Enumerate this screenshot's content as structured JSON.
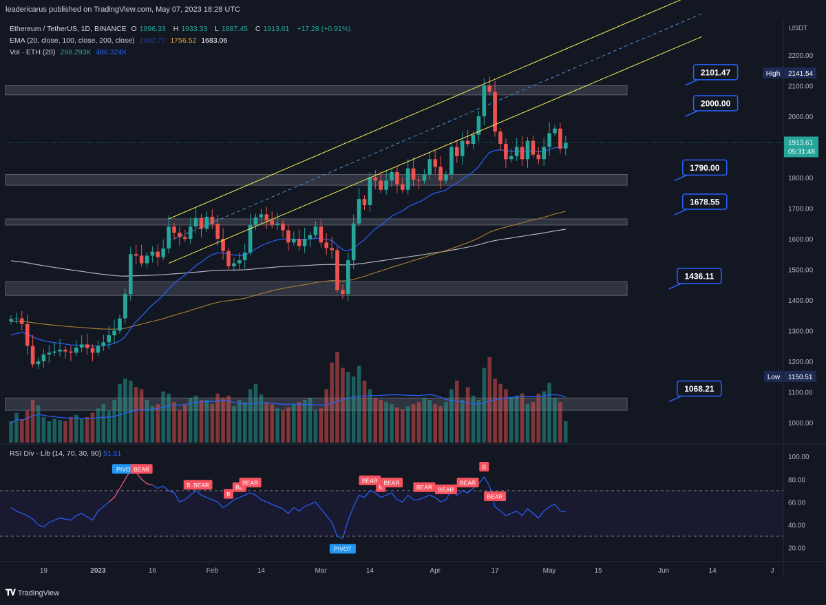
{
  "publisher_line": "leadericarus published on TradingView.com, May 07, 2023 18:28 UTC",
  "legend": {
    "symbol": "Ethereum / TetherUS, 1D, BINANCE",
    "o_label": "O",
    "o_value": "1896.33",
    "h_label": "H",
    "h_value": "1933.33",
    "l_label": "L",
    "l_value": "1887.45",
    "c_label": "C",
    "c_value": "1913.61",
    "change": "+17.28 (+0.91%)",
    "ema_label": "EMA (20, close, 100, close, 200, close)",
    "ema_values": [
      "1902.77",
      "1756.52",
      "1683.06"
    ],
    "vol_label": "Vol · ETH (20)",
    "vol_values": [
      "298.293K",
      "486.324K"
    ],
    "rsi_label": "RSI Div - Lib (14, 70, 30, 90)",
    "rsi_value": "51.51"
  },
  "footer": {
    "brand": "TradingView"
  },
  "colors": {
    "bg": "#131722",
    "up": "#26a69a",
    "down": "#ef5350",
    "zone": "#363a45",
    "channel": "#f4ed57",
    "label_border": "#2962ff",
    "ema20": "#2962ff",
    "ema100": "#a07a32",
    "ema200": "#b2b5be",
    "rsi_line": "#2962ff",
    "bear": "#f7525f",
    "pivot": "#2196f3"
  },
  "chart_data": [
    {
      "type": "candlestick",
      "title": "Ethereum / TetherUS, 1D, BINANCE",
      "currency": "USDT",
      "ylim": [
        930,
        2290
      ],
      "y_ticks": [
        1000,
        1100,
        1200,
        1300,
        1400,
        1500,
        1600,
        1700,
        1800,
        1900,
        2000,
        2100,
        2200
      ],
      "x_ticks": [
        "19",
        "2023",
        "16",
        "Feb",
        "14",
        "Mar",
        "14",
        "Apr",
        "17",
        "May",
        "15",
        "Jun",
        "14",
        "J"
      ],
      "price_labels": [
        {
          "label": "High",
          "value": "2141.54"
        },
        {
          "label": "",
          "value": "1913.61",
          "sub": "05:31:48"
        },
        {
          "label": "Low",
          "value": "1150.51"
        }
      ],
      "level_labels": [
        "2101.47",
        "2000.00",
        "1790.00",
        "1678.55",
        "1436.11",
        "1068.21"
      ],
      "zones": [
        [
          2070,
          2100
        ],
        [
          1775,
          1810
        ],
        [
          1645,
          1665
        ],
        [
          1415,
          1460
        ],
        [
          1040,
          1080
        ]
      ],
      "closes": [
        1338,
        1340,
        1322,
        1250,
        1190,
        1200,
        1222,
        1228,
        1232,
        1238,
        1232,
        1228,
        1245,
        1255,
        1243,
        1228,
        1250,
        1262,
        1285,
        1300,
        1340,
        1420,
        1550,
        1545,
        1520,
        1545,
        1558,
        1540,
        1568,
        1640,
        1620,
        1606,
        1600,
        1640,
        1668,
        1633,
        1672,
        1649,
        1600,
        1560,
        1510,
        1520,
        1530,
        1555,
        1645,
        1670,
        1680,
        1660,
        1645,
        1650,
        1628,
        1588,
        1600,
        1576,
        1600,
        1612,
        1640,
        1588,
        1570,
        1563,
        1433,
        1420,
        1530,
        1650,
        1730,
        1710,
        1800,
        1790,
        1760,
        1790,
        1818,
        1778,
        1760,
        1830,
        1793,
        1790,
        1810,
        1860,
        1835,
        1790,
        1810,
        1900,
        1870,
        1920,
        1910,
        1940,
        2000,
        2100,
        2080,
        1950,
        1910,
        1860,
        1870,
        1900,
        1860,
        1920,
        1875,
        1860,
        1900,
        1945,
        1960,
        1895,
        1913
      ],
      "volume_scale": "relative",
      "volumes": [
        20,
        28,
        22,
        30,
        40,
        35,
        24,
        20,
        22,
        21,
        20,
        24,
        26,
        22,
        24,
        28,
        32,
        36,
        30,
        40,
        55,
        60,
        58,
        52,
        50,
        40,
        34,
        36,
        48,
        46,
        38,
        30,
        36,
        42,
        44,
        40,
        40,
        36,
        46,
        42,
        44,
        34,
        40,
        38,
        50,
        55,
        45,
        38,
        36,
        32,
        30,
        33,
        36,
        38,
        40,
        42,
        30,
        32,
        50,
        75,
        85,
        70,
        66,
        62,
        72,
        58,
        50,
        42,
        40,
        38,
        36,
        33,
        31,
        34,
        36,
        38,
        42,
        40,
        36,
        34,
        38,
        50,
        58,
        40,
        52,
        44,
        40,
        70,
        80,
        60,
        55,
        50,
        42,
        44,
        46,
        36,
        38,
        46,
        48,
        56,
        42,
        38,
        20
      ],
      "ema_labels": [
        "EMA 20",
        "EMA 100",
        "EMA 200"
      ]
    },
    {
      "type": "line",
      "title": "RSI Div - Lib (14, 70, 30, 90)",
      "ylim": [
        10,
        108
      ],
      "y_ticks": [
        20,
        40,
        60,
        80,
        100
      ],
      "levels": [
        70,
        30
      ],
      "values": [
        55,
        52,
        50,
        48,
        45,
        40,
        38,
        42,
        44,
        46,
        45,
        44,
        48,
        50,
        47,
        44,
        52,
        56,
        60,
        64,
        72,
        80,
        88,
        86,
        80,
        76,
        75,
        72,
        74,
        70,
        68,
        60,
        62,
        66,
        70,
        66,
        64,
        62,
        60,
        55,
        58,
        62,
        64,
        66,
        68,
        66,
        62,
        60,
        58,
        56,
        54,
        50,
        55,
        52,
        56,
        58,
        60,
        54,
        48,
        42,
        30,
        28,
        44,
        56,
        66,
        64,
        70,
        68,
        64,
        66,
        68,
        62,
        60,
        66,
        62,
        62,
        64,
        66,
        64,
        60,
        62,
        70,
        66,
        70,
        68,
        72,
        76,
        82,
        74,
        56,
        52,
        48,
        50,
        52,
        48,
        54,
        50,
        46,
        52,
        56,
        58,
        52,
        51.51
      ],
      "signals": [
        {
          "text": "PIVOT",
          "i": 21
        },
        {
          "text": "BEAR",
          "i": 24
        },
        {
          "text": "BE",
          "i": 33
        },
        {
          "text": "BEAR",
          "i": 35
        },
        {
          "text": "B",
          "i": 40
        },
        {
          "text": "BE",
          "i": 42
        },
        {
          "text": "BEAR",
          "i": 44
        },
        {
          "text": "PIVOT",
          "i": 61
        },
        {
          "text": "BEAR",
          "i": 66
        },
        {
          "text": "B",
          "i": 68
        },
        {
          "text": "BEAR",
          "i": 70
        },
        {
          "text": "BEAR",
          "i": 76
        },
        {
          "text": "BEAR",
          "i": 80
        },
        {
          "text": "BEAR",
          "i": 84
        },
        {
          "text": "B",
          "i": 87
        },
        {
          "text": "BEAR",
          "i": 89
        }
      ]
    }
  ]
}
